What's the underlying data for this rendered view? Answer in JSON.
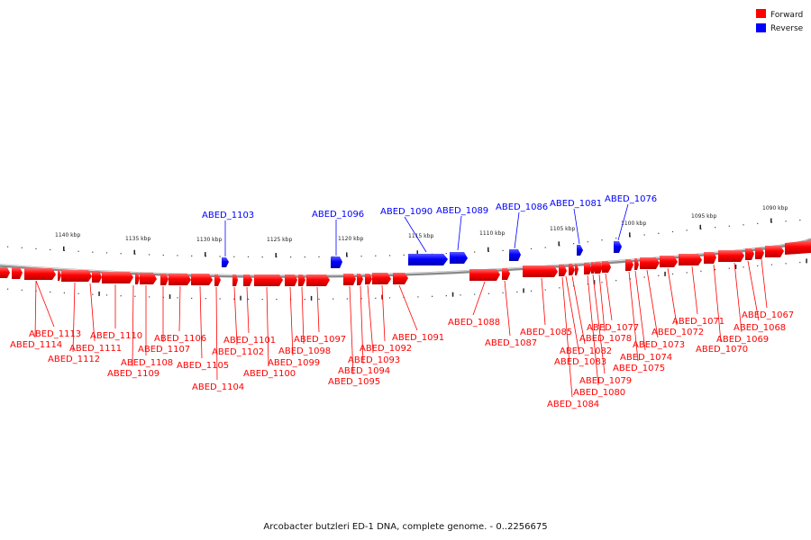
{
  "caption": "Arcobacter butzleri ED-1 DNA, complete genome. - 0..2256675",
  "legend": [
    {
      "label": "Forward",
      "color": "#ff0000"
    },
    {
      "label": "Reverse",
      "color": "#0000ff"
    }
  ],
  "ticks": [
    "1140 kbp",
    "1135 kbp",
    "1130 kbp",
    "1125 kbp",
    "1120 kbp",
    "1115 kbp",
    "1110 kbp",
    "1105 kbp",
    "1100 kbp",
    "1095 kbp",
    "1090 kbp"
  ],
  "forward_genes": [
    "ABED_1113",
    "ABED_1114",
    "ABED_1112",
    "ABED_1111",
    "ABED_1110",
    "ABED_1109",
    "ABED_1108",
    "ABED_1107",
    "ABED_1106",
    "ABED_1105",
    "ABED_1104",
    "ABED_1102",
    "ABED_1101",
    "ABED_1100",
    "ABED_1099",
    "ABED_1098",
    "ABED_1097",
    "ABED_1095",
    "ABED_1094",
    "ABED_1093",
    "ABED_1092",
    "ABED_1091",
    "ABED_1088",
    "ABED_1087",
    "ABED_1085",
    "ABED_1084",
    "ABED_1083",
    "ABED_1082",
    "ABED_1080",
    "ABED_1079",
    "ABED_1078",
    "ABED_1077",
    "ABED_1075",
    "ABED_1074",
    "ABED_1073",
    "ABED_1072",
    "ABED_1071",
    "ABED_1070",
    "ABED_1069",
    "ABED_1068",
    "ABED_1067"
  ],
  "reverse_genes": [
    "ABED_1103",
    "ABED_1096",
    "ABED_1090",
    "ABED_1089",
    "ABED_1086",
    "ABED_1081",
    "ABED_1076"
  ]
}
